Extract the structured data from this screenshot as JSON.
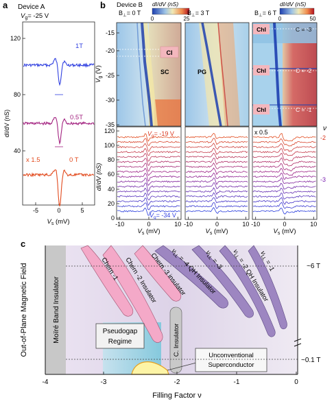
{
  "panel_a": {
    "letter": "a",
    "device": "Device  A",
    "vg_label": "V",
    "vg_sub": "g",
    "vg_value": "= -25 V",
    "ylabel": "dI/dV (nS)",
    "xlabel": "V",
    "xlabel_sub": "s",
    "xlabel_unit": " (mV)",
    "yticks": [
      "40",
      "80",
      "120"
    ],
    "xticks": [
      "-5",
      "0",
      "5"
    ],
    "traces": [
      {
        "label": "1T",
        "color": "#2f3fe0"
      },
      {
        "label": "0.5T",
        "color": "#a2207f"
      },
      {
        "label": "0 T",
        "color": "#e24a1d"
      }
    ],
    "scale_note": "x 1.5"
  },
  "panel_b": {
    "letter": "b",
    "device": "Device  B",
    "colorbar1": {
      "title": "dI/dV (nS)",
      "ticks": [
        "0",
        "25"
      ]
    },
    "colorbar2": {
      "title": "dI/dV (nS)",
      "ticks": [
        "0",
        "50"
      ]
    },
    "maps": [
      {
        "field": "B",
        "field_sub": "⊥",
        "field_value": "= 0 T",
        "tags": [
          "CI",
          "SC"
        ]
      },
      {
        "field": "B",
        "field_sub": "⊥",
        "field_value": "= 3 T",
        "tags": [
          "PG"
        ]
      },
      {
        "field": "B",
        "field_sub": "⊥",
        "field_value": "= 6 T",
        "tags": [
          "ChI",
          "ChI",
          "ChI",
          "C = -3",
          "C = -2",
          "C = -1"
        ]
      }
    ],
    "map_ylabel": "V",
    "map_ylabel_sub": "g",
    "map_ylabel_unit": " (V)",
    "map_yticks": [
      "-15",
      "-20",
      "-25",
      "-30",
      "-35"
    ],
    "line_ylabel": "dI/dV (nS)",
    "line_yticks": [
      "0",
      "20",
      "40",
      "60",
      "80",
      "100",
      "120"
    ],
    "xticks": [
      "-10",
      "0",
      "10"
    ],
    "xlabel": "V",
    "xlabel_sub": "s",
    "xlabel_unit": " (mV)",
    "vg_top": "V",
    "vg_top_sub": "g",
    "vg_top_value": "= -19 V",
    "vg_bottom": "V",
    "vg_bottom_sub": "g",
    "vg_bottom_value": "= -34 V",
    "scale_note": "x 0.5",
    "nu_label": "ν",
    "nu_values": [
      "-2",
      "-3"
    ]
  },
  "panel_c": {
    "letter": "c",
    "ylabel": "Out-of-Plane Magnetic Field",
    "xlabel": "Filling Factor ν",
    "xticks": [
      "-4",
      "-3",
      "-2",
      "-1",
      "0"
    ],
    "right_ticks": [
      "~6 T",
      "~0.1 T"
    ],
    "regions": {
      "moire": "Moïré Band Insulator",
      "chern1": "Chern -1",
      "chern2": "Chern -2 Insulator",
      "chern3": "Chern -3 insulator",
      "qh4": "ν",
      "qh4_sub": "LL",
      "qh4_rest": " = -4 QH Insulator",
      "qh3": "ν",
      "qh3_sub": "LL",
      "qh3_rest": " = -3",
      "qh2": "ν",
      "qh2_sub": "LL",
      "qh2_rest": " = -2 QH Insulator",
      "qh1": "ν",
      "qh1_sub": "LL",
      "qh1_rest": " = -1",
      "cins": "C. Insulator",
      "pseudogap": [
        "Pseudogap",
        "Regime"
      ],
      "uscon": [
        "Unconventional",
        "Superconductor"
      ]
    }
  }
}
